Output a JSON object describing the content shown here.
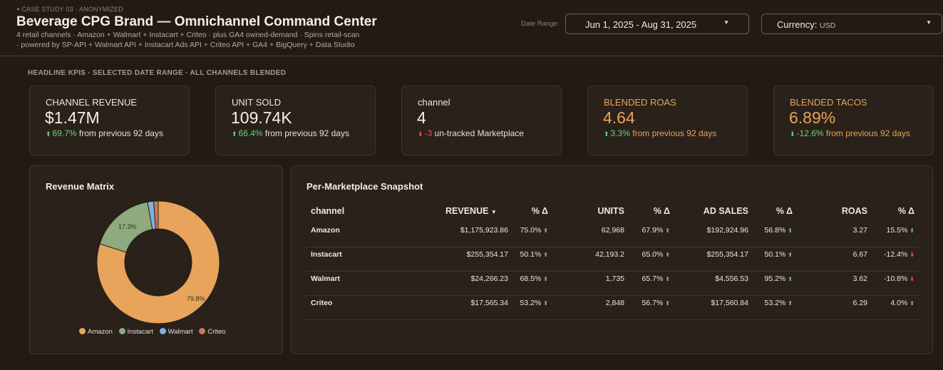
{
  "header": {
    "eyebrow": "CASE STUDY 03 · ANONYMIZED",
    "title": "Beverage CPG Brand — Omnichannel Command Center",
    "subtitle_1": "4 retail channels · Amazon + Walmart + Instacart + Criteo · plus GA4 owned-demand · Spins retail-scan",
    "subtitle_2": "· powered by SP-API + Walmart API + Instacart Ads API + Criteo API + GA4 + BigQuery + Data Studio",
    "date_range_label": "Date Range:",
    "date_range_value": "Jun 1, 2025 - Aug 31, 2025",
    "currency_label": "Currency:",
    "currency_value": "USD"
  },
  "kpi_section_title": "HEADLINE KPIS · SELECTED DATE RANGE · ALL CHANNELS BLENDED",
  "kpis": [
    {
      "label": "CHANNEL REVENUE",
      "value": "$1.47M",
      "delta": "69.7%",
      "direction": "up",
      "rest": "from previous 92 days"
    },
    {
      "label": "UNIT SOLD",
      "value": "109.74K",
      "delta": "66.4%",
      "direction": "up",
      "rest": "from previous 92 days"
    },
    {
      "label": "channel",
      "value": "4",
      "delta": "-3",
      "direction": "down",
      "rest": "un-tracked Marketplace"
    },
    {
      "label": "BLENDED ROAS",
      "value": "4.64",
      "delta": "3.3%",
      "direction": "up",
      "rest": "from previous 92 days"
    },
    {
      "label": "BLENDED TACOS",
      "value": "6.89%",
      "delta": "-12.6%",
      "direction": "down",
      "rest": "from previous 92 days"
    }
  ],
  "revenue_matrix": {
    "title": "Revenue Matrix",
    "labels": {
      "amazon": "79.8%",
      "instacart": "17.3%"
    }
  },
  "chart_data": {
    "type": "pie",
    "donut": true,
    "categories": [
      "Amazon",
      "Instacart",
      "Walmart",
      "Criteo"
    ],
    "values": [
      79.8,
      17.3,
      1.6,
      1.2
    ],
    "colors": [
      "#e8a45a",
      "#8eaa7e",
      "#7fb1e0",
      "#c87a5a"
    ],
    "legend_position": "bottom"
  },
  "snapshot": {
    "title": "Per-Marketplace Snapshot",
    "columns": {
      "channel": "channel",
      "revenue": "REVENUE",
      "pct1": "% Δ",
      "units": "UNITS",
      "pct2": "% Δ",
      "ad_sales": "AD SALES",
      "pct3": "% Δ",
      "roas": "ROAS",
      "pct4": "% Δ"
    },
    "rows": [
      {
        "channel": "Amazon",
        "revenue": "$1,175,923.86",
        "pct1": "75.0%",
        "units": "62,968",
        "pct2": "67.9%",
        "ad_sales": "$192,924.96",
        "pct3": "56.8%",
        "roas": "3.27",
        "pct4": "15.5%",
        "pct4_dir": "up"
      },
      {
        "channel": "Instacart",
        "revenue": "$255,354.17",
        "pct1": "50.1%",
        "units": "42,193.2",
        "pct2": "65.0%",
        "ad_sales": "$255,354.17",
        "pct3": "50.1%",
        "roas": "6.67",
        "pct4": "-12.4%",
        "pct4_dir": "down"
      },
      {
        "channel": "Walmart",
        "revenue": "$24,266.23",
        "pct1": "68.5%",
        "units": "1,735",
        "pct2": "65.7%",
        "ad_sales": "$4,556.53",
        "pct3": "95.2%",
        "roas": "3.62",
        "pct4": "-10.8%",
        "pct4_dir": "down"
      },
      {
        "channel": "Criteo",
        "revenue": "$17,565.34",
        "pct1": "53.2%",
        "units": "2,848",
        "pct2": "56.7%",
        "ad_sales": "$17,560.84",
        "pct3": "53.2%",
        "roas": "6.29",
        "pct4": "4.0%",
        "pct4_dir": "up"
      }
    ]
  },
  "colors": {
    "background": "#221b15",
    "card": "#29211a",
    "accent": "#e8a45a",
    "positive": "#6ad37a",
    "negative": "#e65b55"
  }
}
